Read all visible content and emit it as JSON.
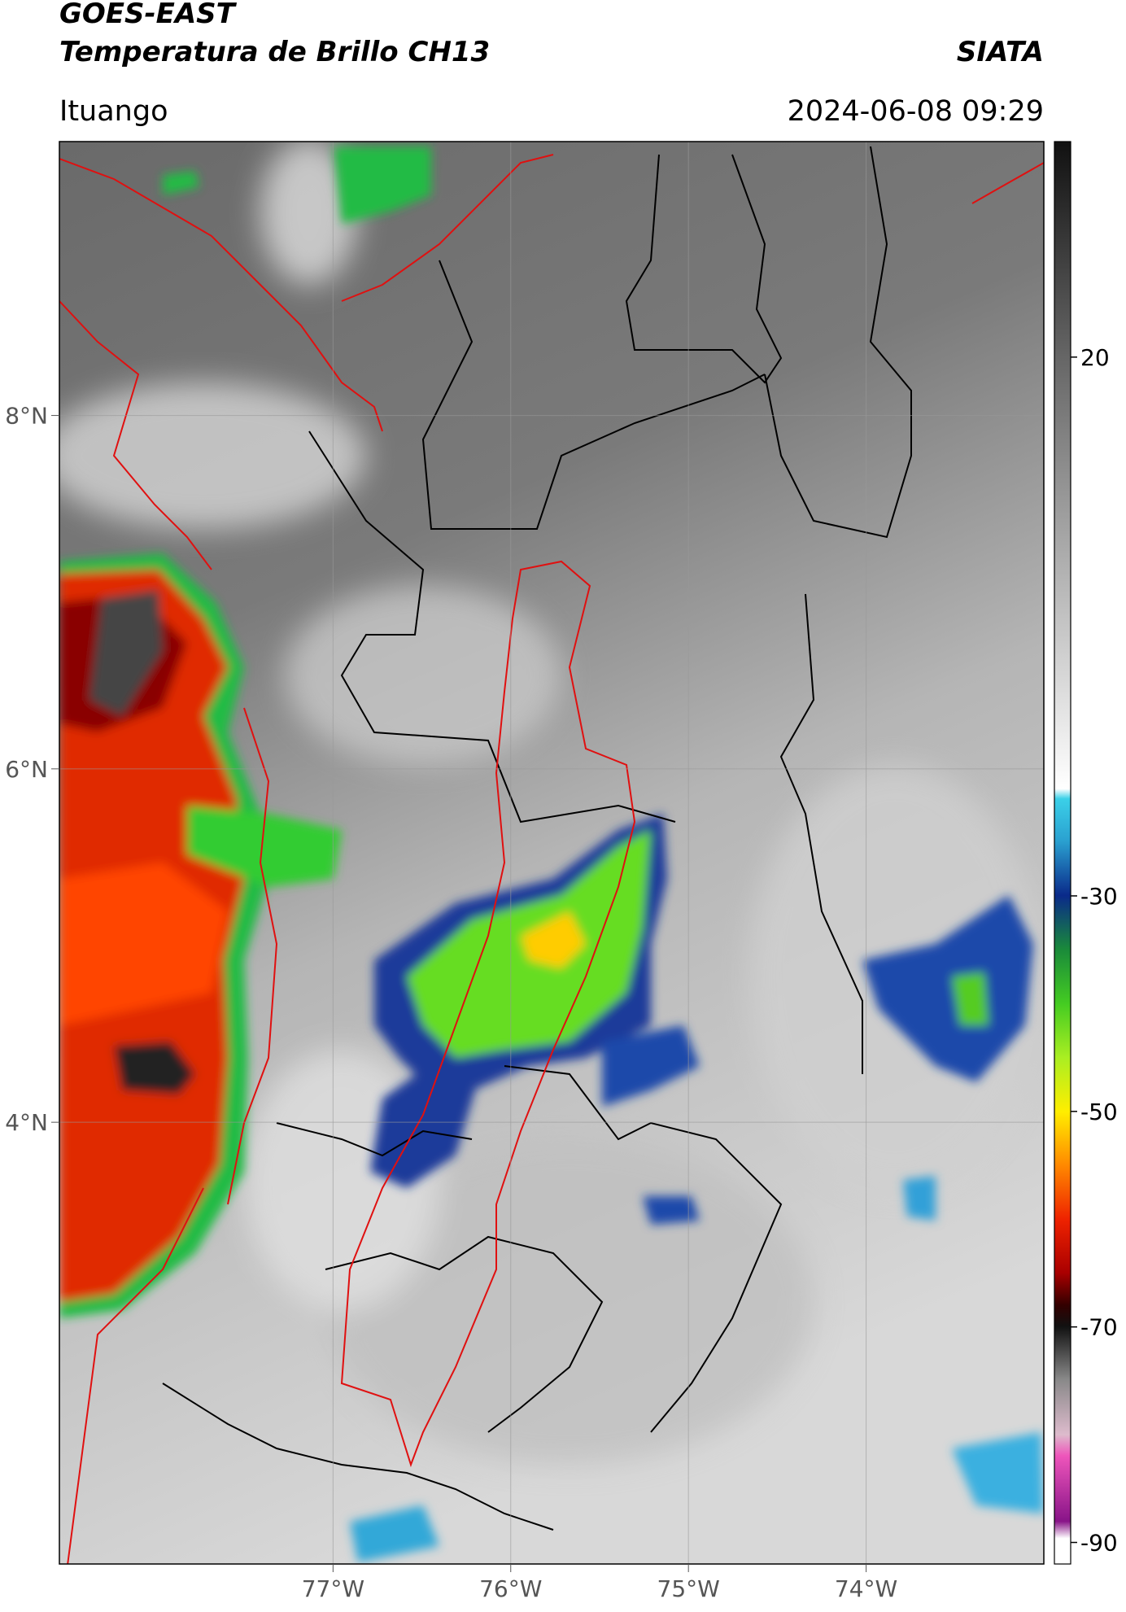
{
  "map": {
    "title": "GOES-EAST",
    "subtitle": "Temperatura de Brillo CH13",
    "source": "SIATA",
    "place": "Ituango",
    "timestamp": "2024-06-08 09:29",
    "xlim": [
      -78.54,
      -73.0
    ],
    "ylim": [
      1.5,
      9.55
    ],
    "xticks": [
      {
        "value": -77,
        "label": "77°W"
      },
      {
        "value": -76,
        "label": "76°W"
      },
      {
        "value": -75,
        "label": "75°W"
      },
      {
        "value": -74,
        "label": "74°W"
      }
    ],
    "yticks": [
      {
        "value": 8,
        "label": "8°N"
      },
      {
        "value": 6,
        "label": "6°N"
      },
      {
        "value": 4,
        "label": "4°N"
      }
    ],
    "colorbar": {
      "clim": [
        -92,
        40
      ],
      "ticks": [
        20,
        -30,
        -50,
        -70,
        -90
      ]
    }
  }
}
